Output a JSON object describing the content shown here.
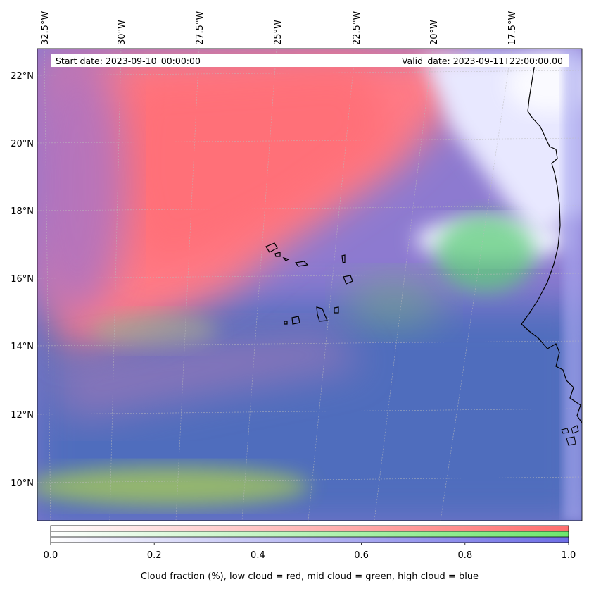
{
  "header": {
    "start_date": "Start date: 2023-09-10_00:00:00",
    "valid_date": "Valid_date: 2023-09-11T22:00:00.00"
  },
  "map": {
    "lon_ticks": [
      "32.5°W",
      "30°W",
      "27.5°W",
      "25°W",
      "22.5°W",
      "20°W",
      "17.5°W"
    ],
    "lat_ticks": [
      "22°N",
      "20°N",
      "18°N",
      "16°N",
      "14°N",
      "12°N",
      "10°N"
    ],
    "extent": {
      "lon_min": -32.5,
      "lon_max": -15.5,
      "lat_min": 8.9,
      "lat_max": 22.8
    },
    "layers": [
      {
        "name": "low cloud",
        "color": "#ff6666"
      },
      {
        "name": "mid cloud",
        "color": "#66dd66"
      },
      {
        "name": "high cloud",
        "color": "#4a66c8"
      }
    ]
  },
  "colorbar": {
    "ticks": [
      "0.0",
      "0.2",
      "0.4",
      "0.6",
      "0.8",
      "1.0"
    ],
    "label": "Cloud fraction (%), low cloud = red, mid cloud = green, high cloud = blue",
    "range": [
      0,
      1
    ],
    "colors": {
      "red": "#ff6e6e",
      "green": "#6ee66e",
      "blue": "#6e6ee6"
    }
  }
}
